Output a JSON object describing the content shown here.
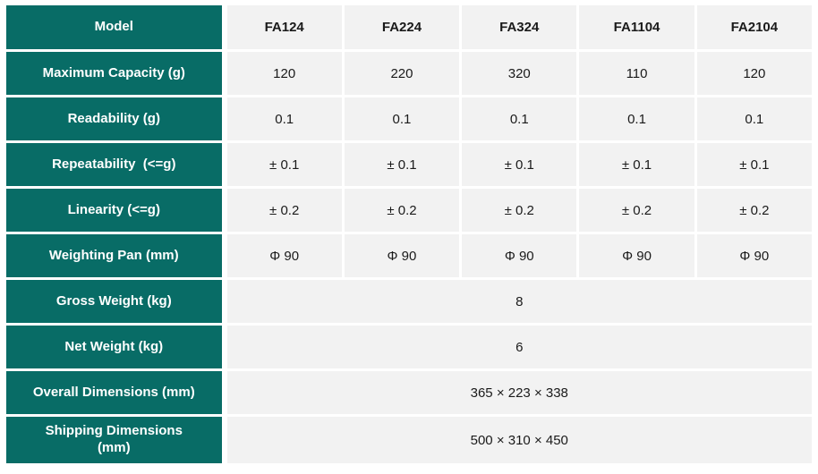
{
  "colors": {
    "header_teal": "#086c66",
    "cell_background": "#f2f2f2",
    "label_text": "#ffffff",
    "value_text": "#1a1a1a",
    "grid_gap": "#ffffff"
  },
  "table": {
    "header": {
      "label": "Model",
      "columns": [
        "FA124",
        "FA224",
        "FA324",
        "FA1104",
        "FA2104"
      ]
    },
    "rows": [
      {
        "label": "Maximum Capacity (g)",
        "values": [
          "120",
          "220",
          "320",
          "110",
          "120"
        ]
      },
      {
        "label": "Readability (g)",
        "values": [
          "0.1",
          "0.1",
          "0.1",
          "0.1",
          "0.1"
        ]
      },
      {
        "label": "Repeatability  (<=g)",
        "values": [
          "± 0.1",
          "± 0.1",
          "± 0.1",
          "± 0.1",
          "± 0.1"
        ]
      },
      {
        "label": "Linearity (<=g)",
        "values": [
          "± 0.2",
          "± 0.2",
          "± 0.2",
          "± 0.2",
          "± 0.2"
        ]
      },
      {
        "label": "Weighting Pan (mm)",
        "values": [
          "Φ 90",
          "Φ 90",
          "Φ 90",
          "Φ 90",
          "Φ 90"
        ]
      },
      {
        "label": "Gross Weight (kg)",
        "merged_value": "8"
      },
      {
        "label": "Net Weight (kg)",
        "merged_value": "6"
      },
      {
        "label": "Overall Dimensions (mm)",
        "merged_value": "365 × 223 × 338"
      },
      {
        "label": "Shipping Dimensions\n(mm)",
        "merged_value": "500 × 310 × 450"
      }
    ]
  }
}
